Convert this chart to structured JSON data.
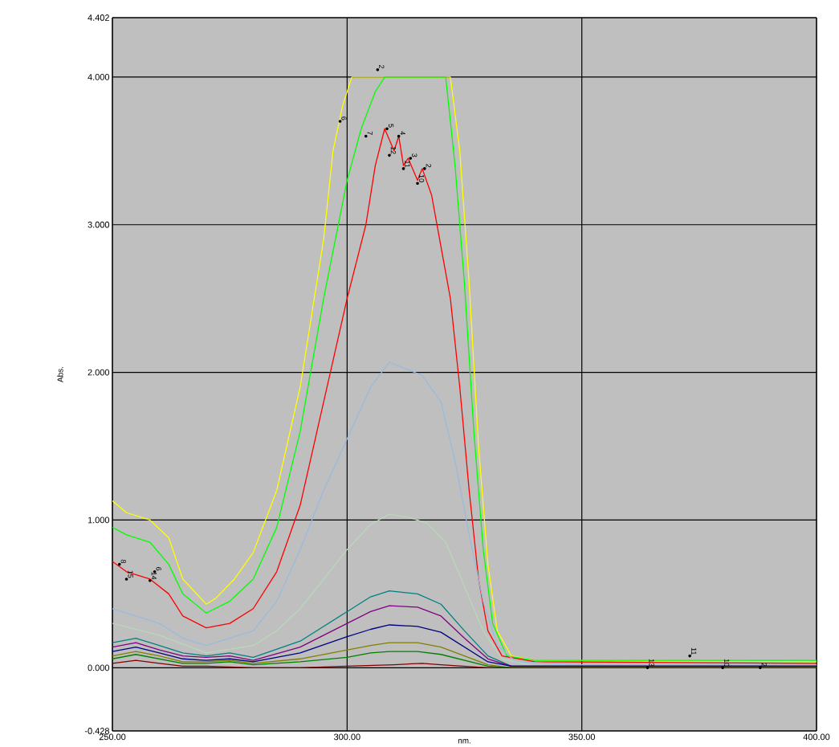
{
  "chart_data": {
    "type": "line",
    "xlabel": "nm.",
    "ylabel": "Abs.",
    "xlim": [
      250,
      400
    ],
    "ylim": [
      -0.428,
      4.402
    ],
    "xticks": [
      {
        "value": 250,
        "label": "250.00"
      },
      {
        "value": 300,
        "label": "300.00"
      },
      {
        "value": 350,
        "label": "350.00"
      },
      {
        "value": 400,
        "label": "400.00"
      }
    ],
    "yticks": [
      {
        "value": -0.428,
        "label": "-0.428"
      },
      {
        "value": 0,
        "label": "0.000"
      },
      {
        "value": 1,
        "label": "1.000"
      },
      {
        "value": 2,
        "label": "2.000"
      },
      {
        "value": 3,
        "label": "3.000"
      },
      {
        "value": 4,
        "label": "4.000"
      },
      {
        "value": 4.402,
        "label": "4.402"
      }
    ],
    "grid": true,
    "marker": "none",
    "line_style": "solid",
    "series": [
      {
        "color": "#ffff00",
        "x": [
          250,
          253,
          258,
          262,
          265,
          270,
          272,
          276,
          280,
          285,
          290,
          295,
          297,
          299,
          301,
          322,
          324,
          326,
          328,
          330,
          332,
          335,
          340,
          400
        ],
        "values": [
          1.13,
          1.05,
          1.0,
          0.88,
          0.6,
          0.43,
          0.47,
          0.6,
          0.78,
          1.2,
          1.9,
          2.9,
          3.5,
          3.8,
          4.0,
          4.0,
          3.5,
          2.6,
          1.5,
          0.7,
          0.25,
          0.08,
          0.05,
          0.04
        ]
      },
      {
        "color": "#00ff00",
        "x": [
          250,
          253,
          258,
          262,
          265,
          270,
          275,
          280,
          285,
          290,
          295,
          300,
          303,
          306,
          308,
          321,
          323,
          325,
          327,
          329,
          331,
          334,
          340,
          400
        ],
        "values": [
          0.95,
          0.9,
          0.85,
          0.7,
          0.5,
          0.37,
          0.45,
          0.6,
          0.95,
          1.6,
          2.5,
          3.3,
          3.65,
          3.9,
          4.0,
          4.0,
          3.4,
          2.6,
          1.6,
          0.8,
          0.3,
          0.08,
          0.05,
          0.05
        ]
      },
      {
        "color": "#ff0000",
        "x": [
          250,
          253,
          258,
          262,
          265,
          270,
          275,
          280,
          285,
          290,
          295,
          300,
          304,
          306,
          308,
          310,
          311,
          312,
          313,
          315,
          316,
          318,
          320,
          322,
          324,
          326,
          328,
          330,
          333,
          340,
          400
        ],
        "values": [
          0.72,
          0.65,
          0.6,
          0.5,
          0.35,
          0.27,
          0.3,
          0.4,
          0.65,
          1.1,
          1.8,
          2.5,
          3.0,
          3.4,
          3.65,
          3.5,
          3.6,
          3.4,
          3.45,
          3.3,
          3.38,
          3.2,
          2.85,
          2.5,
          1.9,
          1.2,
          0.6,
          0.25,
          0.08,
          0.04,
          0.03
        ]
      },
      {
        "color": "#99bbdd",
        "x": [
          250,
          255,
          260,
          265,
          270,
          280,
          285,
          290,
          295,
          300,
          305,
          309,
          312,
          316,
          320,
          323,
          326,
          329,
          332,
          336,
          350,
          400
        ],
        "values": [
          0.4,
          0.35,
          0.3,
          0.2,
          0.15,
          0.25,
          0.45,
          0.8,
          1.2,
          1.55,
          1.9,
          2.07,
          2.03,
          1.98,
          1.8,
          1.4,
          0.9,
          0.45,
          0.15,
          0.04,
          0.02,
          0.02
        ]
      },
      {
        "color": "#b8d8b8",
        "x": [
          250,
          260,
          270,
          280,
          285,
          290,
          295,
          300,
          305,
          309,
          313,
          317,
          321,
          325,
          329,
          333,
          340,
          400
        ],
        "values": [
          0.3,
          0.22,
          0.1,
          0.15,
          0.25,
          0.4,
          0.6,
          0.8,
          0.97,
          1.04,
          1.02,
          0.98,
          0.85,
          0.55,
          0.25,
          0.06,
          0.01,
          0.01
        ]
      },
      {
        "color": "#008080",
        "x": [
          250,
          255,
          260,
          265,
          270,
          275,
          280,
          290,
          300,
          305,
          309,
          315,
          320,
          325,
          330,
          335,
          400
        ],
        "values": [
          0.17,
          0.2,
          0.15,
          0.1,
          0.08,
          0.1,
          0.07,
          0.18,
          0.38,
          0.48,
          0.52,
          0.5,
          0.43,
          0.25,
          0.08,
          0.01,
          0.01
        ]
      },
      {
        "color": "#800080",
        "x": [
          250,
          255,
          260,
          265,
          270,
          275,
          280,
          290,
          300,
          305,
          309,
          315,
          320,
          325,
          330,
          335,
          400
        ],
        "values": [
          0.14,
          0.17,
          0.12,
          0.08,
          0.07,
          0.08,
          0.05,
          0.14,
          0.3,
          0.38,
          0.42,
          0.41,
          0.35,
          0.2,
          0.06,
          0.01,
          0.01
        ]
      },
      {
        "color": "#000080",
        "x": [
          250,
          255,
          260,
          265,
          270,
          275,
          280,
          290,
          300,
          305,
          309,
          315,
          320,
          325,
          330,
          335,
          400
        ],
        "values": [
          0.11,
          0.14,
          0.1,
          0.06,
          0.05,
          0.06,
          0.04,
          0.1,
          0.21,
          0.26,
          0.29,
          0.28,
          0.24,
          0.14,
          0.04,
          0.01,
          0.01
        ]
      },
      {
        "color": "#808000",
        "x": [
          250,
          255,
          260,
          265,
          270,
          275,
          280,
          290,
          300,
          305,
          309,
          315,
          320,
          325,
          330,
          335,
          400
        ],
        "values": [
          0.08,
          0.11,
          0.08,
          0.04,
          0.04,
          0.05,
          0.03,
          0.06,
          0.12,
          0.15,
          0.17,
          0.17,
          0.14,
          0.08,
          0.02,
          0.0,
          0.0
        ]
      },
      {
        "color": "#008000",
        "x": [
          250,
          255,
          260,
          265,
          270,
          275,
          280,
          290,
          300,
          305,
          309,
          315,
          320,
          325,
          330,
          335,
          400
        ],
        "values": [
          0.06,
          0.09,
          0.06,
          0.03,
          0.03,
          0.04,
          0.02,
          0.04,
          0.07,
          0.1,
          0.11,
          0.11,
          0.09,
          0.05,
          0.01,
          0.0,
          0.0
        ]
      },
      {
        "color": "#800000",
        "x": [
          250,
          255,
          260,
          265,
          270,
          280,
          290,
          300,
          310,
          316,
          320,
          330,
          400
        ],
        "values": [
          0.03,
          0.05,
          0.03,
          0.01,
          0.01,
          0.0,
          0.0,
          0.01,
          0.02,
          0.03,
          0.02,
          0.0,
          0.0
        ]
      }
    ],
    "annotations": [
      {
        "text": "5",
        "x": 308.5,
        "y": 3.65
      },
      {
        "text": "4",
        "x": 311,
        "y": 3.6
      },
      {
        "text": "3",
        "x": 313.5,
        "y": 3.45
      },
      {
        "text": "2",
        "x": 316.5,
        "y": 3.38
      },
      {
        "text": "12",
        "x": 309,
        "y": 3.47
      },
      {
        "text": "11",
        "x": 312,
        "y": 3.38
      },
      {
        "text": "10",
        "x": 315,
        "y": 3.28
      },
      {
        "text": "6",
        "x": 298.5,
        "y": 3.7
      },
      {
        "text": "2",
        "x": 306.5,
        "y": 4.05
      },
      {
        "text": "7",
        "x": 304,
        "y": 3.6
      },
      {
        "text": "8",
        "x": 251.5,
        "y": 0.7
      },
      {
        "text": "15",
        "x": 253,
        "y": 0.6
      },
      {
        "text": "14",
        "x": 258,
        "y": 0.59
      },
      {
        "text": "6",
        "x": 259,
        "y": 0.65
      },
      {
        "text": "13",
        "x": 364,
        "y": 0
      },
      {
        "text": "11",
        "x": 373,
        "y": 0.08
      },
      {
        "text": "10",
        "x": 380,
        "y": 0
      },
      {
        "text": "2",
        "x": 388,
        "y": 0
      }
    ]
  }
}
